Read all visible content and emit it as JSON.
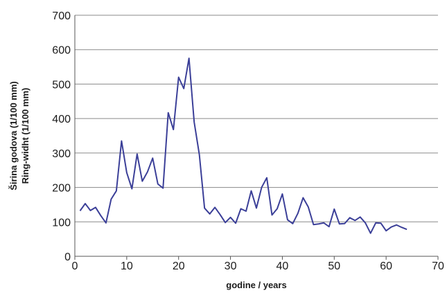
{
  "chart_data": {
    "type": "line",
    "title": "",
    "xlabel": "godine / years",
    "ylabel_lines": [
      "Širina godova (1/100 mm)",
      "Ring-widht (1/100 mm)"
    ],
    "xlim": [
      0,
      70
    ],
    "ylim": [
      0,
      700
    ],
    "xticks": [
      0,
      10,
      20,
      30,
      40,
      50,
      60,
      70
    ],
    "yticks": [
      0,
      100,
      200,
      300,
      400,
      500,
      600,
      700
    ],
    "grid": "horizontal",
    "legend": "none",
    "line_color": "#3b3f98",
    "series": [
      {
        "x": [
          1,
          2,
          3,
          4,
          5,
          6,
          7,
          8,
          9,
          10,
          11,
          12,
          13,
          14,
          15,
          16,
          17,
          18,
          19,
          20,
          21,
          22,
          23,
          24,
          25,
          26,
          27,
          28,
          29,
          30,
          31,
          32,
          33,
          34,
          35,
          36,
          37,
          38,
          39,
          40,
          41,
          42,
          43,
          44,
          45,
          46,
          47,
          48,
          49,
          50,
          51,
          52,
          53,
          54,
          55,
          56,
          57,
          58,
          59,
          60,
          61,
          62,
          63,
          64
        ],
        "values": [
          132,
          153,
          133,
          142,
          118,
          97,
          166,
          190,
          335,
          243,
          196,
          297,
          218,
          245,
          285,
          210,
          198,
          417,
          368,
          520,
          487,
          575,
          390,
          295,
          140,
          123,
          142,
          121,
          98,
          113,
          96,
          138,
          131,
          190,
          140,
          200,
          228,
          120,
          138,
          181,
          106,
          95,
          125,
          170,
          143,
          92,
          94,
          97,
          86,
          137,
          94,
          95,
          112,
          104,
          114,
          97,
          67,
          97,
          96,
          74,
          85,
          91,
          84,
          78
        ]
      }
    ]
  }
}
